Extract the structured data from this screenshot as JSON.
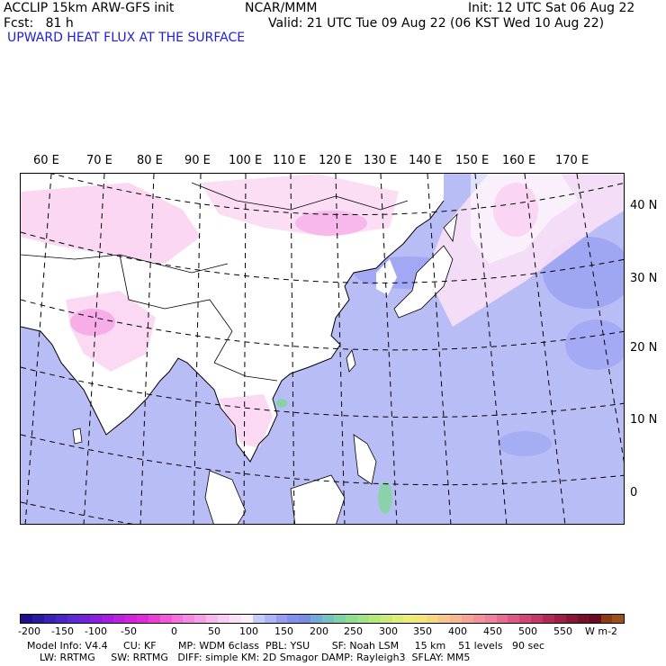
{
  "header": {
    "model": "ACCLIP 15km ARW-GFS init",
    "fcst": "Fcst:   81 h",
    "org": "NCAR/MMM",
    "init": "Init: 12 UTC Sat 06 Aug 22",
    "valid": "Valid: 21 UTC Tue 09 Aug 22 (06 KST Wed 10 Aug 22)",
    "title": "UPWARD HEAT FLUX AT THE SURFACE"
  },
  "colors": {
    "title": "#1f1fd6",
    "ocean": "#b9bdf6",
    "ocean_dark": "#8f98f0",
    "land": "#ffffff",
    "land_pink": "#fbd0f0",
    "land_magenta": "#f39ae3",
    "tropic_green": "#7fd79a"
  },
  "map": {
    "lon_labels": [
      "60 E",
      "70 E",
      "80 E",
      "90 E",
      "100 E",
      "110 E",
      "120 E",
      "130 E",
      "140 E",
      "150 E",
      "160 E",
      "170 E"
    ],
    "lat_labels": [
      "40 N",
      "30 N",
      "20 N",
      "10 N",
      "0"
    ]
  },
  "colorbar": {
    "labels": [
      "-200",
      "-150",
      "-100",
      "-50",
      "0",
      "50",
      "100",
      "150",
      "200",
      "250",
      "300",
      "350",
      "400",
      "450",
      "500",
      "550"
    ],
    "units": "W m-2",
    "colors": [
      "#1e0f8c",
      "#2a1aa0",
      "#3a22b5",
      "#4a26c5",
      "#5c2ad2",
      "#7024da",
      "#8a1fde",
      "#a31ee0",
      "#bb22dd",
      "#d024db",
      "#e02ad8",
      "#ea3ed6",
      "#f258da",
      "#f572de",
      "#f58ae2",
      "#f5a0e6",
      "#f7b8ec",
      "#f9ccf2",
      "#fbe0f7",
      "#fdf0fb",
      "#c7cbf8",
      "#aeb4f4",
      "#959ef0",
      "#8390ec",
      "#788ee4",
      "#74a9d9",
      "#74c0c2",
      "#7fd2a6",
      "#8fdd92",
      "#a3e385",
      "#b6e87c",
      "#c9ec78",
      "#dcee76",
      "#ebee78",
      "#f3e47c",
      "#f7d682",
      "#f8c78a",
      "#f7b792",
      "#f5a596",
      "#f2939a",
      "#ee819c",
      "#e66e94",
      "#dc5b86",
      "#d04875",
      "#c23866",
      "#b02a56",
      "#9c1f48",
      "#881637",
      "#760f2a",
      "#6a0b22",
      "#8a3d12",
      "#9e5016"
    ]
  },
  "footer": {
    "line1": "Model Info: V4.4     CU: KF       MP: WDM 6class  PBL: YSU       SF: Noah LSM     15 km    51 levels   90 sec",
    "line2": "LW: RRTMG     SW: RRTMG   DIFF: simple KM: 2D Smagor DAMP: Rayleigh3  SFLAY: MM5"
  }
}
